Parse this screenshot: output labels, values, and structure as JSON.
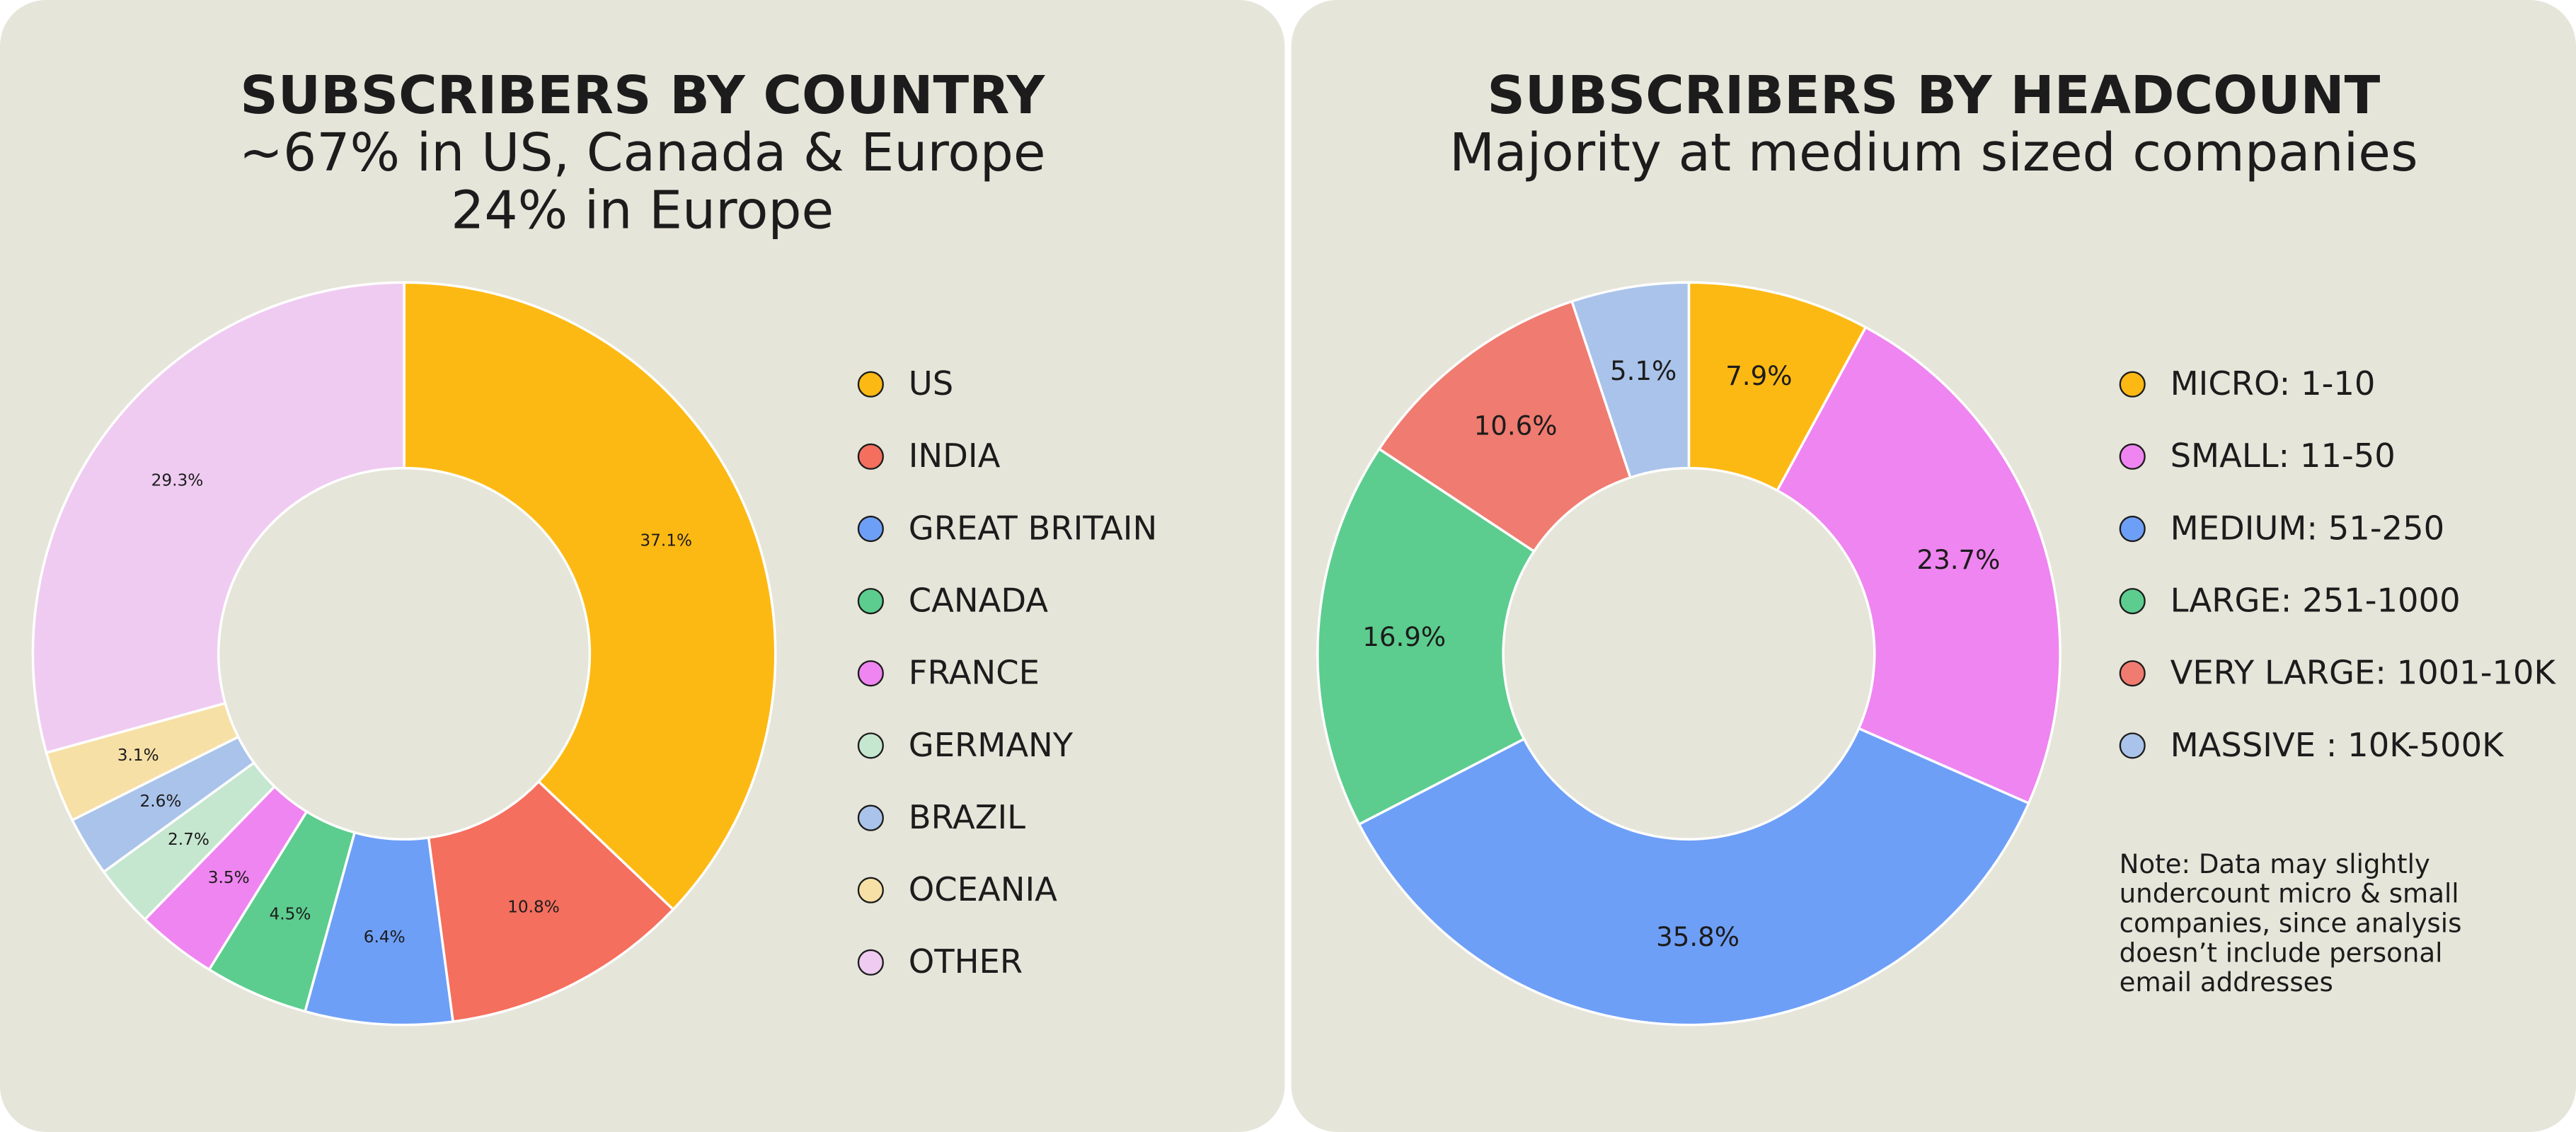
{
  "chart_data": [
    {
      "type": "donut",
      "title": "SUBSCRIBERS BY COUNTRY",
      "subtitle": [
        "~67% in US, Canada & Europe",
        "24% in Europe"
      ],
      "categories": [
        "US",
        "INDIA",
        "GREAT BRITAIN",
        "CANADA",
        "FRANCE",
        "GERMANY",
        "BRAZIL",
        "OCEANIA",
        "OTHER"
      ],
      "values": [
        37.1,
        10.8,
        6.4,
        4.5,
        3.5,
        2.7,
        2.6,
        3.1,
        29.3
      ],
      "value_labels": [
        "37.1%",
        "10.8%",
        "6.4%",
        "4.5%",
        "3.5%",
        "2.7%",
        "2.6%",
        "3.1%",
        "29.3%"
      ],
      "colors": [
        "#fdb913",
        "#f46f5e",
        "#6e9ff7",
        "#5ccd8e",
        "#ef85f0",
        "#c5e6cf",
        "#aac3ea",
        "#f6e0a6",
        "#efcbf1"
      ]
    },
    {
      "type": "donut",
      "title": "SUBSCRIBERS BY HEADCOUNT",
      "subtitle": [
        "Majority at medium sized companies"
      ],
      "categories": [
        "MICRO: 1-10",
        "SMALL: 11-50",
        "MEDIUM: 51-250",
        "LARGE: 251-1000",
        "VERY LARGE: 1001-10K",
        "MASSIVE : 10K-500K"
      ],
      "values": [
        7.9,
        23.7,
        35.8,
        16.9,
        10.6,
        5.1
      ],
      "value_labels": [
        "7.9%",
        "23.7%",
        "35.8%",
        "16.9%",
        "10.6%",
        "5.1%"
      ],
      "colors": [
        "#fdb913",
        "#ef85f0",
        "#6e9ff7",
        "#5ccd8e",
        "#f07b70",
        "#aac3ea"
      ],
      "note": [
        "Note: Data may slightly",
        "undercount micro & small",
        "companies, since analysis",
        "doesn’t include personal",
        "email addresses"
      ]
    }
  ]
}
